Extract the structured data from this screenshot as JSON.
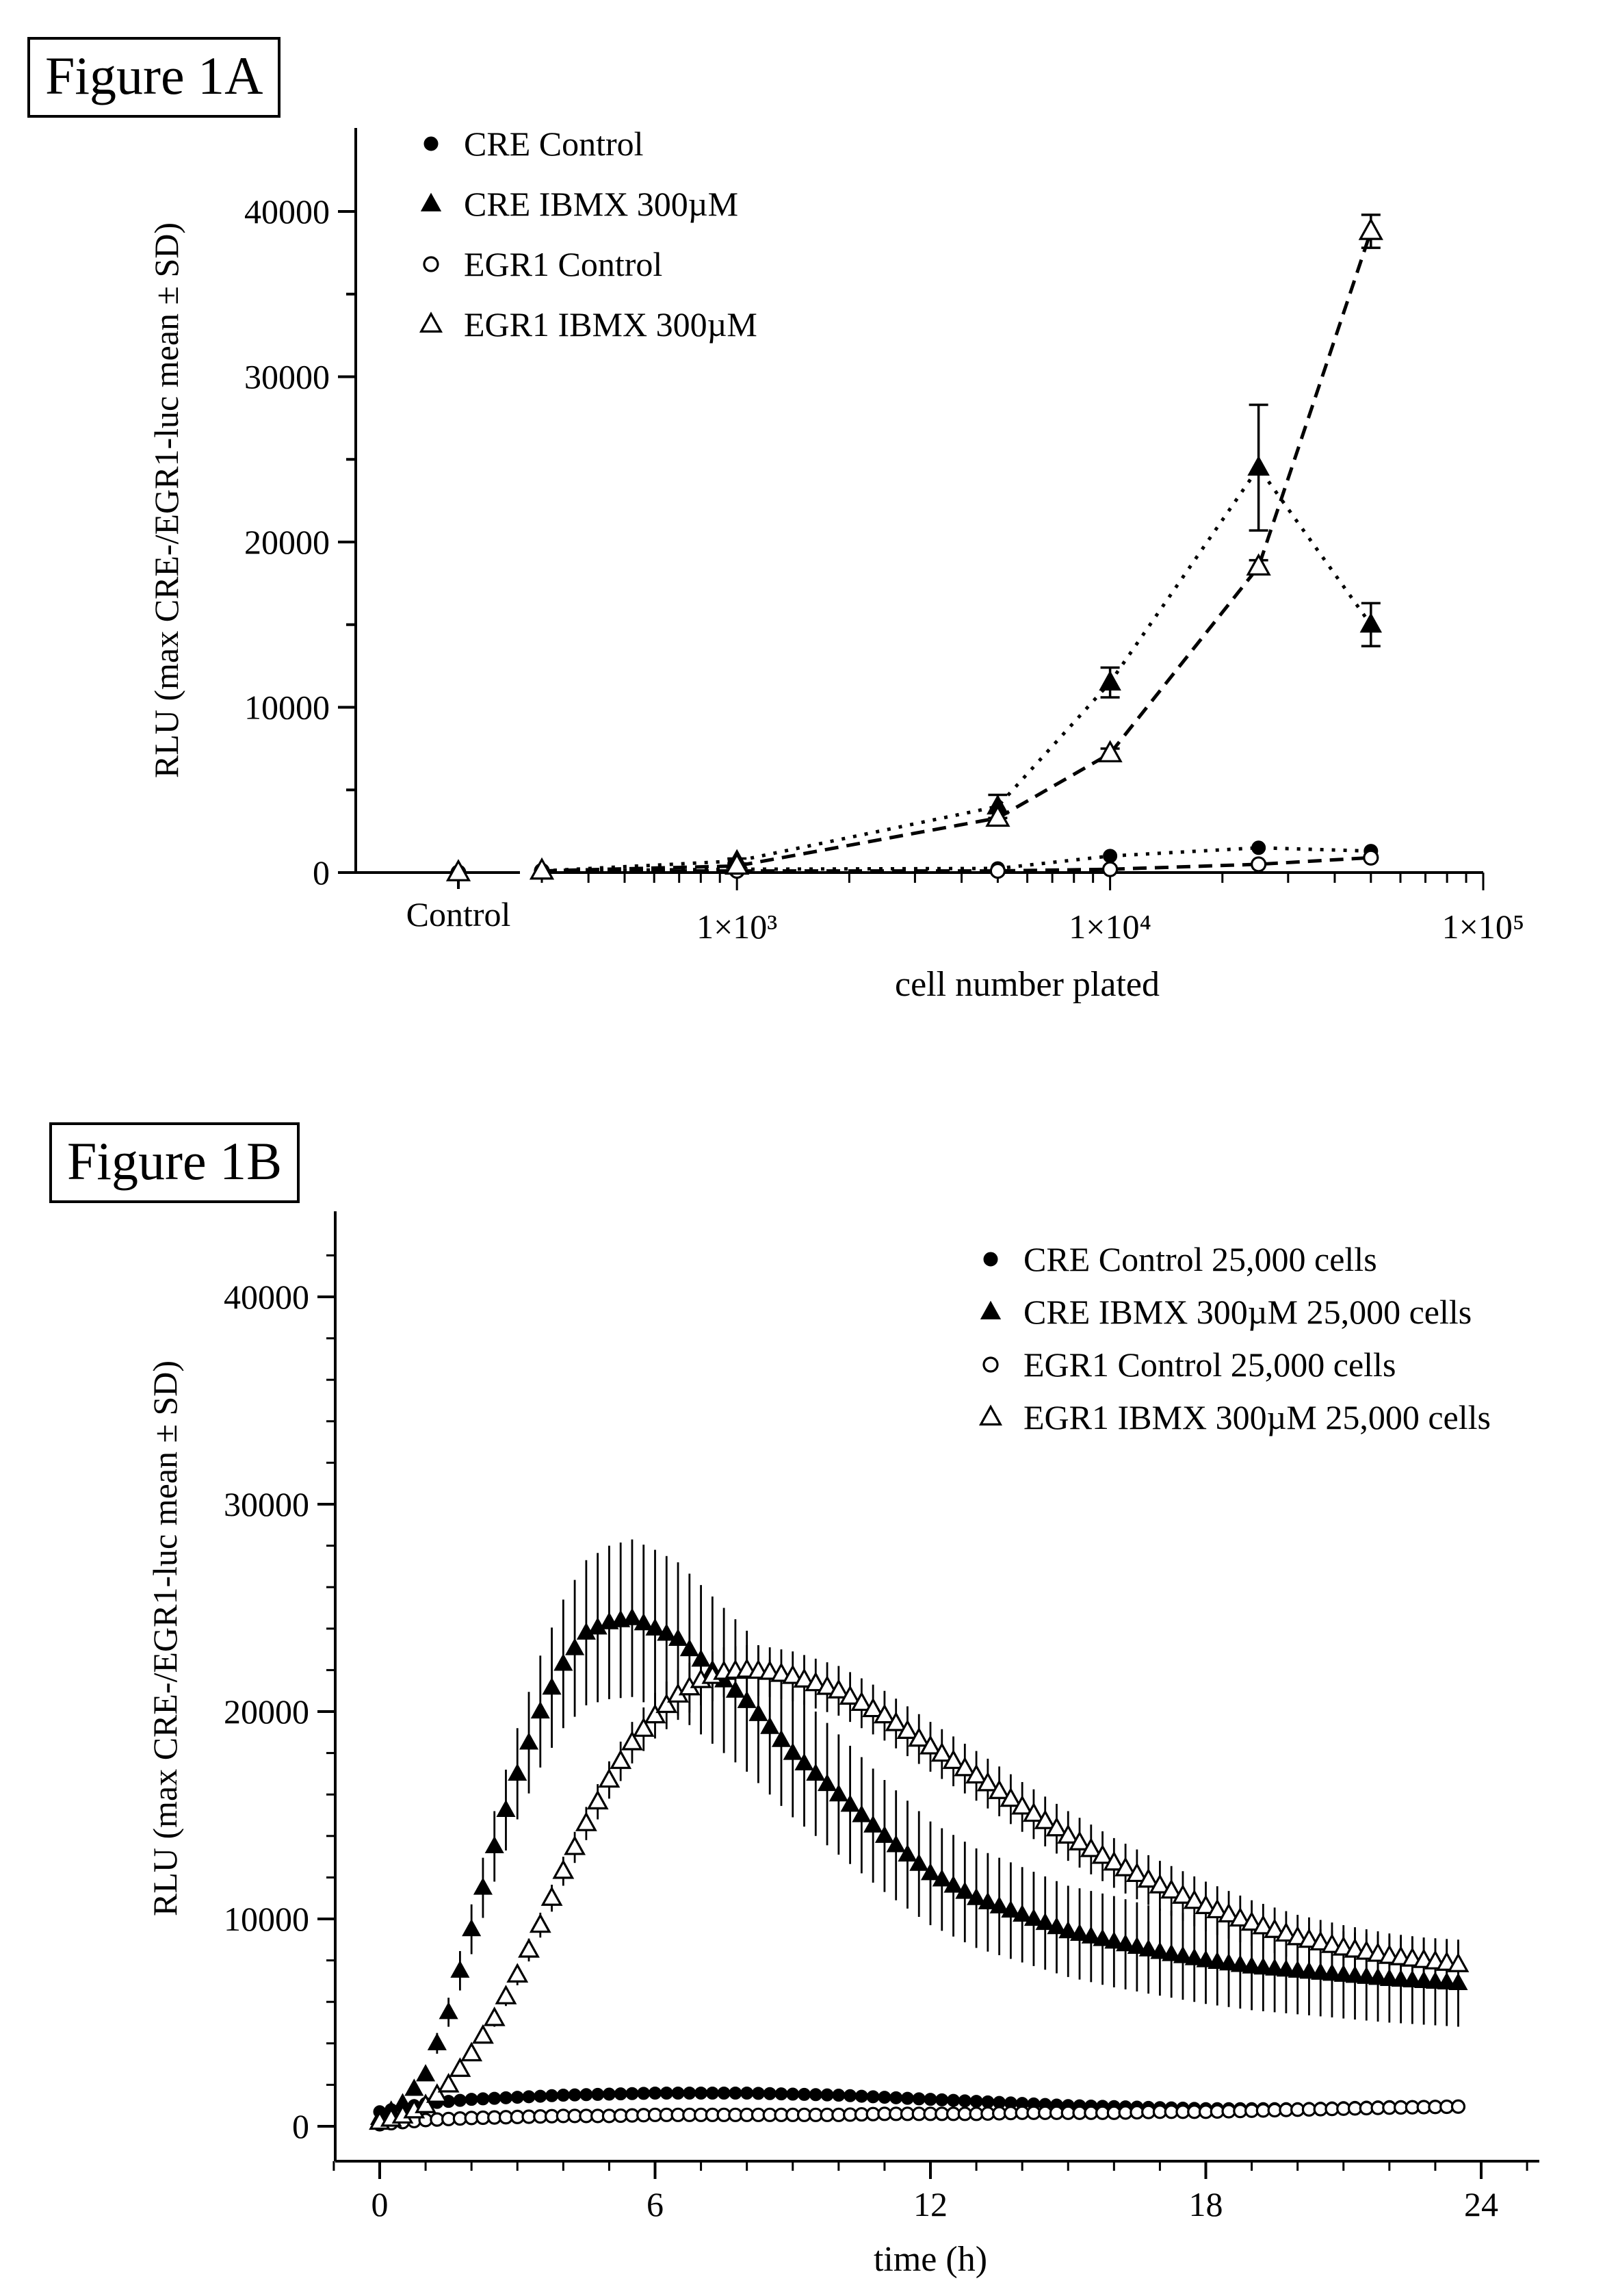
{
  "figures": {
    "a_label": "Figure 1A",
    "b_label": "Figure 1B"
  },
  "chart_data": [
    {
      "type": "line",
      "id": "1A",
      "title": "Figure 1A",
      "xlabel": "cell number plated",
      "ylabel": "RLU (max CRE-/EGR1-luc mean ± SD)",
      "xscale": "log",
      "xlim": [
        300,
        100000
      ],
      "ylim": [
        0,
        45000
      ],
      "yticks": [
        0,
        10000,
        20000,
        30000,
        40000
      ],
      "xtick_labels": [
        "1×10³",
        "1×10⁴",
        "1×10⁵"
      ],
      "xtick_values": [
        1000,
        10000,
        100000
      ],
      "control_label": "Control",
      "legend_position": "top-left",
      "series": [
        {
          "name": "CRE Control",
          "marker": "filled-circle",
          "line": "dotted",
          "control": 0,
          "x": [
            300,
            1000,
            5000,
            10000,
            25000,
            50000
          ],
          "y": [
            100,
            200,
            250,
            1000,
            1500,
            1300
          ],
          "err": [
            0,
            0,
            0,
            0,
            0,
            0
          ]
        },
        {
          "name": "CRE IBMX 300µM",
          "marker": "filled-triangle",
          "line": "dotted",
          "control": 0,
          "x": [
            300,
            1000,
            5000,
            10000,
            25000,
            50000
          ],
          "y": [
            100,
            700,
            4000,
            11500,
            24500,
            15000
          ],
          "err": [
            0,
            150,
            700,
            900,
            3800,
            1300
          ]
        },
        {
          "name": "EGR1 Control",
          "marker": "open-circle",
          "line": "dashed",
          "control": 0,
          "x": [
            300,
            1000,
            5000,
            10000,
            25000,
            50000
          ],
          "y": [
            100,
            100,
            100,
            200,
            500,
            900
          ],
          "err": [
            0,
            0,
            0,
            0,
            0,
            0
          ]
        },
        {
          "name": "EGR1 IBMX 300µM",
          "marker": "open-triangle",
          "line": "dashed",
          "control": 0,
          "x": [
            300,
            1000,
            5000,
            10000,
            25000,
            50000
          ],
          "y": [
            100,
            400,
            3300,
            7200,
            18500,
            38800
          ],
          "err": [
            0,
            0,
            300,
            300,
            400,
            1000
          ]
        }
      ]
    },
    {
      "type": "scatter",
      "id": "1B",
      "title": "Figure 1B",
      "xlabel": "time (h)",
      "ylabel": "RLU (max CRE-/EGR1-luc mean ± SD)",
      "xlim": [
        -1,
        25
      ],
      "ylim": [
        0,
        44000
      ],
      "xticks": [
        0,
        6,
        12,
        18,
        24
      ],
      "yticks": [
        0,
        10000,
        20000,
        30000,
        40000
      ],
      "legend_position": "top-right",
      "sampling_interval_h": 0.25,
      "t_end_h": 23.5,
      "series": [
        {
          "name": "CRE Control 25,000 cells",
          "marker": "filled-circle",
          "x": [
            0,
            0.5,
            1,
            2,
            3,
            4,
            5,
            6,
            7,
            8,
            9,
            10,
            11,
            12,
            13,
            14,
            15,
            16,
            17,
            18,
            19,
            20,
            21,
            22,
            23.5
          ],
          "y": [
            700,
            900,
            1100,
            1300,
            1400,
            1500,
            1550,
            1600,
            1600,
            1600,
            1550,
            1500,
            1400,
            1300,
            1200,
            1100,
            1000,
            950,
            900,
            850,
            850,
            850,
            900,
            950,
            950
          ],
          "err": [
            0,
            0,
            0,
            0,
            0,
            0,
            0,
            0,
            0,
            0,
            0,
            0,
            0,
            0,
            0,
            0,
            0,
            0,
            0,
            0,
            0,
            0,
            0,
            0,
            0
          ]
        },
        {
          "name": "CRE IBMX 300µM 25,000 cells",
          "marker": "filled-triangle",
          "x": [
            0,
            0.5,
            1,
            1.5,
            2,
            2.5,
            3,
            3.5,
            4,
            4.5,
            5,
            5.5,
            6,
            6.5,
            7,
            8,
            9,
            10,
            11,
            12,
            13,
            14,
            15,
            16,
            17,
            18,
            19,
            20,
            21,
            22,
            23.5
          ],
          "y": [
            400,
            1100,
            2500,
            5500,
            9500,
            13500,
            17000,
            20000,
            22300,
            23800,
            24300,
            24500,
            24000,
            23500,
            22500,
            20500,
            18000,
            16000,
            14000,
            12200,
            11000,
            10200,
            9400,
            8900,
            8400,
            8000,
            7700,
            7500,
            7300,
            7100,
            6900
          ],
          "err": [
            0,
            100,
            300,
            700,
            1200,
            1700,
            2200,
            2700,
            3100,
            3500,
            3700,
            3800,
            3800,
            3700,
            3600,
            3400,
            3100,
            2900,
            2700,
            2500,
            2400,
            2300,
            2200,
            2200,
            2100,
            2100,
            2100,
            2100,
            2100,
            2100,
            2100
          ]
        },
        {
          "name": "EGR1 Control 25,000 cells",
          "marker": "open-circle",
          "x": [
            0,
            0.5,
            1,
            2,
            3,
            4,
            5,
            6,
            7,
            8,
            9,
            10,
            11,
            12,
            13,
            14,
            15,
            16,
            17,
            18,
            19,
            20,
            21,
            22,
            23.5
          ],
          "y": [
            100,
            200,
            300,
            400,
            450,
            500,
            500,
            550,
            550,
            550,
            550,
            550,
            600,
            600,
            600,
            650,
            650,
            650,
            700,
            700,
            750,
            800,
            850,
            900,
            950
          ],
          "err": [
            0,
            0,
            0,
            0,
            0,
            0,
            0,
            0,
            0,
            0,
            0,
            0,
            0,
            0,
            0,
            0,
            0,
            0,
            0,
            0,
            0,
            0,
            0,
            0,
            0
          ]
        },
        {
          "name": "EGR1 IBMX 300µM 25,000 cells",
          "marker": "open-triangle",
          "x": [
            0,
            0.5,
            1,
            1.5,
            2,
            2.5,
            3,
            3.5,
            4,
            4.5,
            5,
            5.5,
            6,
            6.5,
            7,
            7.5,
            8,
            8.5,
            9,
            10,
            11,
            12,
            13,
            14,
            15,
            16,
            17,
            18,
            19,
            20,
            21,
            22,
            23.5
          ],
          "y": [
            200,
            500,
            1000,
            2000,
            3500,
            5200,
            7300,
            9700,
            12300,
            14600,
            16700,
            18500,
            19800,
            20800,
            21500,
            21900,
            22000,
            21900,
            21700,
            21000,
            19800,
            18300,
            16900,
            15400,
            14000,
            12700,
            11600,
            10600,
            9800,
            9100,
            8600,
            8200,
            7800
          ],
          "err": [
            0,
            50,
            100,
            200,
            300,
            400,
            500,
            600,
            700,
            800,
            900,
            1000,
            1100,
            1200,
            1200,
            1200,
            1200,
            1200,
            1200,
            1200,
            1200,
            1200,
            1200,
            1200,
            1200,
            1200,
            1200,
            1200,
            1100,
            1100,
            1100,
            1100,
            1100
          ]
        }
      ]
    }
  ]
}
